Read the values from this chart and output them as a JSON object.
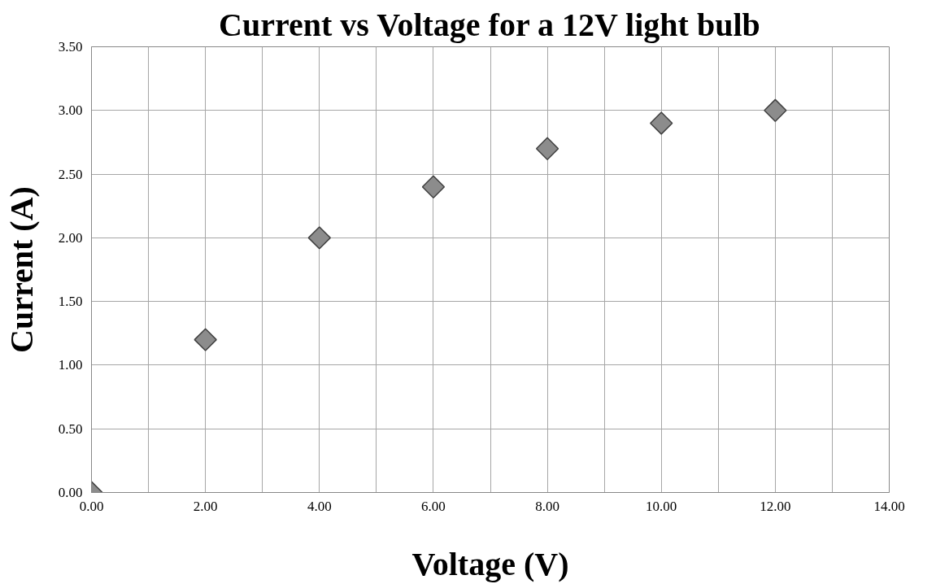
{
  "chart_data": {
    "type": "scatter",
    "title": "Current vs Voltage for a 12V light bulb",
    "xlabel": "Voltage (V)",
    "ylabel": "Current (A)",
    "x": [
      0,
      2,
      4,
      6,
      8,
      10,
      12
    ],
    "series": [
      {
        "color": "#8c8c8c",
        "values": [
          0,
          1.2,
          2.0,
          2.4,
          2.7,
          2.9,
          3.0
        ]
      }
    ],
    "marker": "diamond",
    "grid": true,
    "xlim": [
      0,
      14
    ],
    "xticks": [
      {
        "value": 0,
        "label": "0.00"
      },
      {
        "value": 1,
        "label": null
      },
      {
        "value": 2,
        "label": "2.00"
      },
      {
        "value": 3,
        "label": null
      },
      {
        "value": 4,
        "label": "4.00"
      },
      {
        "value": 5,
        "label": null
      },
      {
        "value": 6,
        "label": "6.00"
      },
      {
        "value": 7,
        "label": null
      },
      {
        "value": 8,
        "label": "8.00"
      },
      {
        "value": 9,
        "label": null
      },
      {
        "value": 10,
        "label": "10.00"
      },
      {
        "value": 11,
        "label": null
      },
      {
        "value": 12,
        "label": "12.00"
      },
      {
        "value": 13,
        "label": null
      },
      {
        "value": 14,
        "label": "14.00"
      }
    ],
    "ylim": [
      0,
      3.5
    ],
    "yticks": [
      {
        "value": 0,
        "label": "0.00"
      },
      {
        "value": 0.5,
        "label": "0.50"
      },
      {
        "value": 1,
        "label": "1.00"
      },
      {
        "value": 1.5,
        "label": "1.50"
      },
      {
        "value": 2,
        "label": "2.00"
      },
      {
        "value": 2.5,
        "label": "2.50"
      },
      {
        "value": 3,
        "label": "3.00"
      },
      {
        "value": 3.5,
        "label": "3.50"
      }
    ]
  }
}
